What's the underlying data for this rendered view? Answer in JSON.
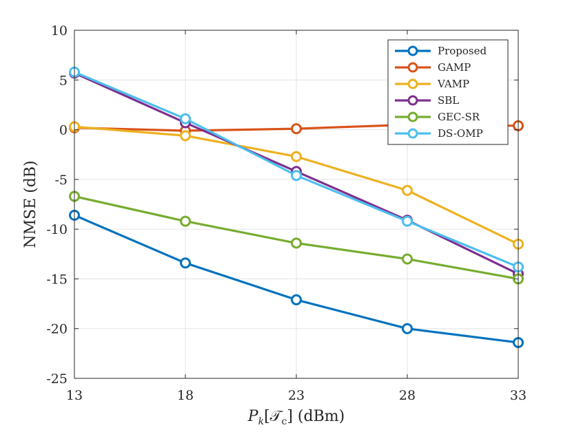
{
  "chart_data": {
    "type": "line",
    "title": "",
    "xlabel_main": "P",
    "xlabel_sub": "k",
    "xlabel_bracket": "[𝒯",
    "xlabel_sub2": "c",
    "xlabel_tail": "] (dBm)",
    "ylabel": "NMSE (dB)",
    "x": [
      13,
      18,
      23,
      28,
      33
    ],
    "xlim": [
      13,
      33
    ],
    "ylim": [
      -25,
      10
    ],
    "xticks": [
      "13",
      "18",
      "23",
      "28",
      "33"
    ],
    "yticks": [
      "-25",
      "-20",
      "-15",
      "-10",
      "-5",
      "0",
      "5",
      "10"
    ],
    "grid": true,
    "legend_position": "top-right",
    "series": [
      {
        "name": "Proposed",
        "color": "#0072BD",
        "values": [
          -8.6,
          -13.4,
          -17.1,
          -20.0,
          -21.4
        ]
      },
      {
        "name": "GAMP",
        "color": "#D95319",
        "values": [
          0.2,
          -0.1,
          0.1,
          0.5,
          0.4
        ]
      },
      {
        "name": "VAMP",
        "color": "#EDB120",
        "values": [
          0.3,
          -0.6,
          -2.7,
          -6.1,
          -11.5
        ]
      },
      {
        "name": "SBL",
        "color": "#7E2F8E",
        "values": [
          5.7,
          0.7,
          -4.2,
          -9.1,
          -14.5
        ]
      },
      {
        "name": "GEC-SR",
        "color": "#77AC30",
        "values": [
          -6.7,
          -9.2,
          -11.4,
          -13.0,
          -15.0
        ]
      },
      {
        "name": "DS-OMP",
        "color": "#4DBEEE",
        "values": [
          5.8,
          1.1,
          -4.6,
          -9.2,
          -13.8
        ]
      }
    ]
  }
}
